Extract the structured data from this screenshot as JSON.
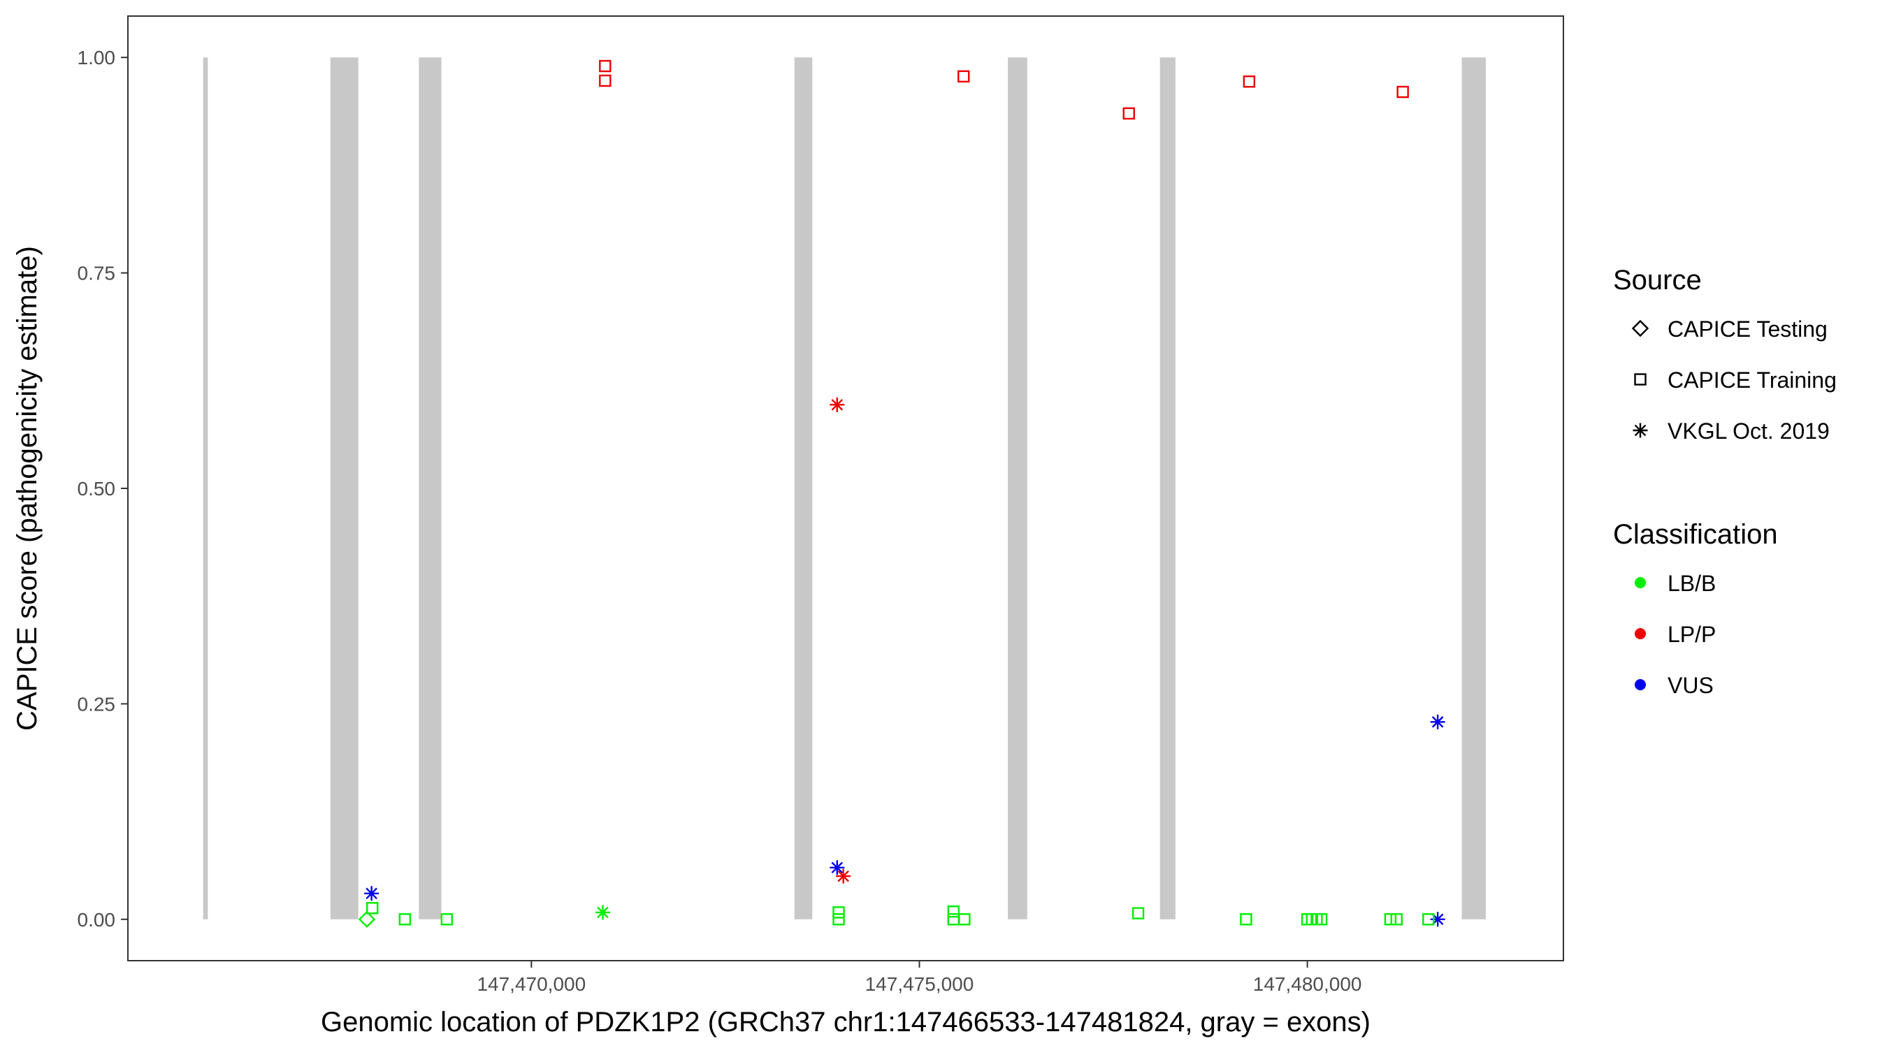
{
  "chart_data": {
    "type": "scatter",
    "xlabel": "Genomic location of PDZK1P2 (GRCh37 chr1:147466533-147481824, gray = exons)",
    "ylabel": "CAPICE score (pathogenicity estimate)",
    "xlim": [
      147464800,
      147483300
    ],
    "ylim": [
      -0.048,
      1.048
    ],
    "x_ticks": [
      147470000,
      147475000,
      147480000
    ],
    "x_tick_labels": [
      "147,470,000",
      "147,475,000",
      "147,480,000"
    ],
    "y_ticks": [
      0,
      0.25,
      0.5,
      0.75,
      1.0
    ],
    "y_tick_labels": [
      "0.00",
      "0.25",
      "0.50",
      "0.75",
      "1.00"
    ],
    "grid": false,
    "exons": [
      {
        "start": 147465770,
        "end": 147465830
      },
      {
        "start": 147467410,
        "end": 147467770
      },
      {
        "start": 147468550,
        "end": 147468840
      },
      {
        "start": 147473390,
        "end": 147473620
      },
      {
        "start": 147476140,
        "end": 147476390
      },
      {
        "start": 147478100,
        "end": 147478300
      },
      {
        "start": 147481990,
        "end": 147482300
      }
    ],
    "legend": {
      "position": "right",
      "source_title": "Source",
      "source_items": [
        {
          "label": "CAPICE Testing",
          "shape": "diamond"
        },
        {
          "label": "CAPICE Training",
          "shape": "square"
        },
        {
          "label": "VKGL Oct. 2019",
          "shape": "asterisk"
        }
      ],
      "classification_title": "Classification",
      "classification_items": [
        {
          "label": "LB/B",
          "color": "#00ee00"
        },
        {
          "label": "LP/P",
          "color": "#ee0000"
        },
        {
          "label": "VUS",
          "color": "#0000ee"
        }
      ]
    },
    "points": [
      {
        "x": 147470950,
        "y": 0.99,
        "source": "CAPICE Training",
        "classification": "LP/P"
      },
      {
        "x": 147470950,
        "y": 0.973,
        "source": "CAPICE Training",
        "classification": "LP/P"
      },
      {
        "x": 147475570,
        "y": 0.978,
        "source": "CAPICE Training",
        "classification": "LP/P"
      },
      {
        "x": 147477700,
        "y": 0.935,
        "source": "CAPICE Training",
        "classification": "LP/P"
      },
      {
        "x": 147479250,
        "y": 0.972,
        "source": "CAPICE Training",
        "classification": "LP/P"
      },
      {
        "x": 147481230,
        "y": 0.96,
        "source": "CAPICE Training",
        "classification": "LP/P"
      },
      {
        "x": 147473940,
        "y": 0.597,
        "source": "VKGL Oct. 2019",
        "classification": "LP/P"
      },
      {
        "x": 147474020,
        "y": 0.05,
        "source": "VKGL Oct. 2019",
        "classification": "LP/P"
      },
      {
        "x": 147473940,
        "y": 0.06,
        "source": "VKGL Oct. 2019",
        "classification": "VUS"
      },
      {
        "x": 147467940,
        "y": 0.03,
        "source": "VKGL Oct. 2019",
        "classification": "VUS"
      },
      {
        "x": 147481680,
        "y": 0.229,
        "source": "VKGL Oct. 2019",
        "classification": "VUS"
      },
      {
        "x": 147481680,
        "y": 0.0,
        "source": "VKGL Oct. 2019",
        "classification": "VUS"
      },
      {
        "x": 147470920,
        "y": 0.008,
        "source": "VKGL Oct. 2019",
        "classification": "LB/B"
      },
      {
        "x": 147467950,
        "y": 0.013,
        "source": "CAPICE Training",
        "classification": "LB/B"
      },
      {
        "x": 147467880,
        "y": 0.0,
        "source": "CAPICE Testing",
        "classification": "LB/B"
      },
      {
        "x": 147468370,
        "y": 0.0,
        "source": "CAPICE Training",
        "classification": "LB/B"
      },
      {
        "x": 147468910,
        "y": 0.0,
        "source": "CAPICE Training",
        "classification": "LB/B"
      },
      {
        "x": 147473960,
        "y": 0.008,
        "source": "CAPICE Training",
        "classification": "LB/B"
      },
      {
        "x": 147473960,
        "y": 0.0,
        "source": "CAPICE Training",
        "classification": "LB/B"
      },
      {
        "x": 147475440,
        "y": 0.009,
        "source": "CAPICE Training",
        "classification": "LB/B"
      },
      {
        "x": 147475440,
        "y": 0.0,
        "source": "CAPICE Training",
        "classification": "LB/B"
      },
      {
        "x": 147475580,
        "y": 0.0,
        "source": "CAPICE Training",
        "classification": "LB/B"
      },
      {
        "x": 147477820,
        "y": 0.007,
        "source": "CAPICE Training",
        "classification": "LB/B"
      },
      {
        "x": 147479210,
        "y": 0.0,
        "source": "CAPICE Training",
        "classification": "LB/B"
      },
      {
        "x": 147480000,
        "y": 0.0,
        "source": "CAPICE Training",
        "classification": "LB/B"
      },
      {
        "x": 147480060,
        "y": 0.0,
        "source": "CAPICE Training",
        "classification": "LB/B"
      },
      {
        "x": 147480120,
        "y": 0.0,
        "source": "CAPICE Training",
        "classification": "LB/B"
      },
      {
        "x": 147480180,
        "y": 0.0,
        "source": "CAPICE Training",
        "classification": "LB/B"
      },
      {
        "x": 147481070,
        "y": 0.0,
        "source": "CAPICE Training",
        "classification": "LB/B"
      },
      {
        "x": 147481150,
        "y": 0.0,
        "source": "CAPICE Training",
        "classification": "LB/B"
      },
      {
        "x": 147481560,
        "y": 0.0,
        "source": "CAPICE Training",
        "classification": "LB/B"
      }
    ]
  }
}
